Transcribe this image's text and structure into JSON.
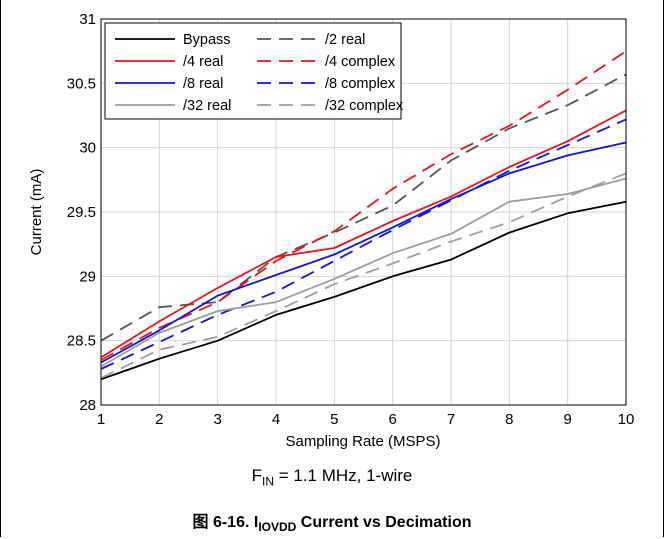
{
  "chart_data": {
    "type": "line",
    "xlabel": "Sampling Rate (MSPS)",
    "ylabel": "Current (mA)",
    "xlim": [
      1,
      10
    ],
    "ylim": [
      28,
      31
    ],
    "xticks": [
      "1",
      "2",
      "3",
      "4",
      "5",
      "6",
      "7",
      "8",
      "9",
      "10"
    ],
    "yticks": [
      "28",
      "28.5",
      "29",
      "29.5",
      "30",
      "30.5",
      "31"
    ],
    "grid": true,
    "legend_position": "top-left",
    "x": [
      1,
      2,
      3,
      4,
      5,
      6,
      7,
      8,
      9,
      10
    ],
    "series": [
      {
        "name": "Bypass",
        "color": "#000000",
        "dash": "solid",
        "values": [
          28.2,
          28.36,
          28.5,
          28.7,
          28.84,
          29.0,
          29.13,
          29.34,
          29.49,
          29.58
        ]
      },
      {
        "name": "/2 real",
        "color": "#555555",
        "dash": "dashed",
        "values": [
          28.5,
          28.76,
          28.8,
          29.15,
          29.34,
          29.55,
          29.9,
          30.15,
          30.33,
          30.57
        ]
      },
      {
        "name": "/4 real",
        "color": "#e8141d",
        "dash": "solid",
        "values": [
          28.37,
          28.65,
          28.91,
          29.15,
          29.22,
          29.43,
          29.62,
          29.85,
          30.05,
          30.29
        ]
      },
      {
        "name": "/4 complex",
        "color": "#e8141d",
        "dash": "dashed",
        "values": [
          28.35,
          28.6,
          28.8,
          29.12,
          29.35,
          29.68,
          29.95,
          30.17,
          30.45,
          30.75
        ]
      },
      {
        "name": "/8 real",
        "color": "#1414d6",
        "dash": "solid",
        "values": [
          28.33,
          28.58,
          28.85,
          29.01,
          29.17,
          29.38,
          29.6,
          29.8,
          29.94,
          30.04
        ]
      },
      {
        "name": "/8 complex",
        "color": "#1414d6",
        "dash": "dashed",
        "values": [
          28.28,
          28.49,
          28.7,
          28.88,
          29.12,
          29.36,
          29.59,
          29.82,
          30.02,
          30.22
        ]
      },
      {
        "name": "/32 real",
        "color": "#9e9e9e",
        "dash": "solid",
        "values": [
          28.3,
          28.56,
          28.73,
          28.8,
          28.98,
          29.18,
          29.33,
          29.58,
          29.64,
          29.76
        ]
      },
      {
        "name": "/32 complex",
        "color": "#9e9e9e",
        "dash": "dashed",
        "values": [
          28.21,
          28.43,
          28.53,
          28.73,
          28.94,
          29.1,
          29.27,
          29.42,
          29.62,
          29.8
        ]
      }
    ]
  },
  "caption": {
    "condition_prefix": "F",
    "condition_sub": "IN",
    "condition_suffix": " = 1.1 MHz, 1-wire",
    "figure_prefix": "图 6-16. I",
    "figure_sub": "IOVDD",
    "figure_suffix": " Current vs Decimation"
  }
}
